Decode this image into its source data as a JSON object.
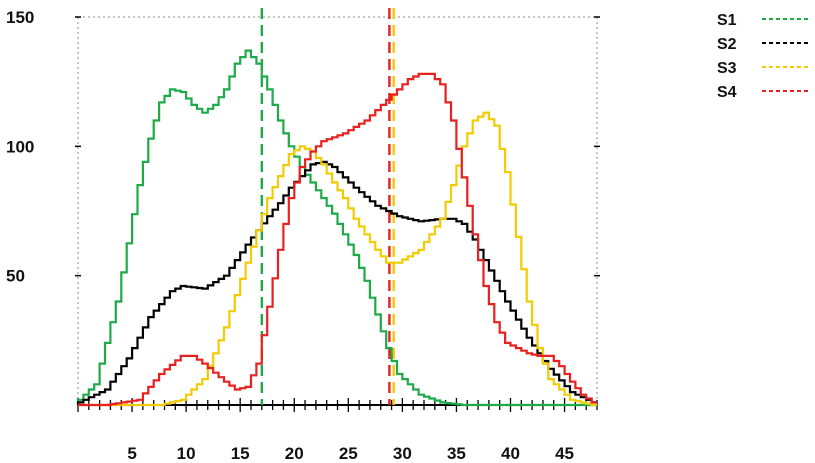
{
  "chart_data": {
    "type": "line",
    "title": "",
    "xlabel": "",
    "ylabel": "",
    "xlim": [
      0,
      48
    ],
    "ylim": [
      0,
      150
    ],
    "x_ticks": [
      5,
      10,
      15,
      20,
      25,
      30,
      35,
      40,
      45
    ],
    "y_ticks": [
      50,
      100,
      150
    ],
    "grid": false,
    "legend_position": "top-right",
    "series": [
      {
        "name": "S1",
        "color": "#1faa4a",
        "x": [
          0,
          2,
          4,
          6,
          7,
          8,
          9,
          10,
          11,
          12,
          13,
          14,
          15,
          16,
          17,
          18,
          19,
          20,
          21,
          22,
          23,
          24,
          25,
          26,
          27,
          28,
          29,
          30,
          32,
          34,
          36
        ],
        "y": [
          0,
          8,
          40,
          85,
          103,
          117,
          122,
          121,
          116,
          113,
          116,
          122,
          132,
          137,
          132,
          122,
          110,
          100,
          92,
          86,
          80,
          74,
          66,
          58,
          48,
          35,
          22,
          12,
          4,
          1,
          0
        ]
      },
      {
        "name": "S2",
        "color": "#000000",
        "x": [
          0,
          3,
          5,
          7,
          9,
          10,
          12,
          14,
          16,
          18,
          19,
          20,
          22,
          23,
          24,
          25,
          26,
          28,
          30,
          32,
          34,
          35,
          36,
          37,
          38,
          40,
          42,
          44,
          46,
          48
        ],
        "y": [
          0,
          6,
          18,
          34,
          44,
          46,
          45,
          50,
          62,
          73,
          78,
          84,
          93,
          94,
          92,
          88,
          84,
          77,
          73,
          71,
          72,
          72,
          70,
          64,
          56,
          40,
          26,
          14,
          5,
          1
        ]
      },
      {
        "name": "S3",
        "color": "#f2cc00",
        "x": [
          0,
          8,
          10,
          12,
          14,
          16,
          18,
          20,
          21,
          22,
          23,
          24,
          25,
          26,
          28,
          29,
          30,
          32,
          34,
          35,
          36,
          37,
          38,
          39,
          40,
          41,
          42,
          43,
          44,
          46,
          48
        ],
        "y": [
          0,
          0,
          2,
          10,
          30,
          55,
          80,
          97,
          100,
          98,
          93,
          86,
          80,
          72,
          60,
          55,
          55,
          60,
          72,
          85,
          100,
          110,
          113,
          108,
          90,
          65,
          40,
          22,
          10,
          2,
          0
        ]
      },
      {
        "name": "S4",
        "color": "#e82020",
        "x": [
          0,
          3,
          6,
          8,
          10,
          11,
          12,
          14,
          15,
          16,
          17,
          18,
          19,
          20,
          21,
          22,
          23,
          25,
          27,
          29,
          31,
          32,
          33,
          34,
          35,
          36,
          37,
          38,
          39,
          40,
          42,
          43,
          44,
          45,
          46,
          47,
          48
        ],
        "y": [
          0,
          0,
          2,
          12,
          19,
          19,
          16,
          9,
          6,
          7,
          16,
          38,
          60,
          80,
          92,
          98,
          102,
          105,
          110,
          118,
          126,
          128,
          128,
          124,
          110,
          88,
          66,
          46,
          32,
          24,
          20,
          19,
          19,
          15,
          9,
          4,
          1
        ]
      }
    ],
    "vertical_lines": [
      {
        "x": 17,
        "color": "#1faa4a"
      },
      {
        "x": 28.8,
        "color": "#e82020"
      },
      {
        "x": 29.2,
        "color": "#f2cc00"
      }
    ]
  }
}
